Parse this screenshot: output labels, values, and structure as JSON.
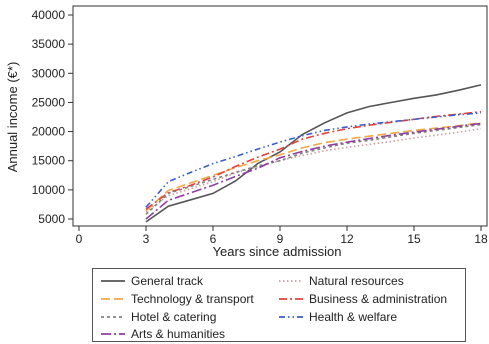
{
  "chart_data": {
    "type": "line",
    "title": "",
    "xlabel": "Years since admission",
    "ylabel": "Annual income (€*)",
    "xlim": [
      0,
      18
    ],
    "ylim": [
      3000,
      41000
    ],
    "x_ticks": [
      0,
      3,
      6,
      9,
      12,
      15,
      18
    ],
    "y_ticks": [
      5000,
      10000,
      15000,
      20000,
      25000,
      30000,
      35000,
      40000
    ],
    "grid": false,
    "legend_position": "bottom",
    "x": [
      3,
      4,
      5,
      6,
      7,
      8,
      9,
      10,
      11,
      12,
      13,
      14,
      15,
      16,
      17,
      18
    ],
    "series": [
      {
        "name": "General track",
        "color": "#555555",
        "dash": "solid",
        "values": [
          4500,
          7200,
          8300,
          9400,
          11500,
          14500,
          16500,
          19500,
          21500,
          23200,
          24300,
          25000,
          25700,
          26300,
          27100,
          28000
        ]
      },
      {
        "name": "Natural resources",
        "color": "#c8a0a0",
        "dash": "dotted",
        "values": [
          6200,
          9000,
          10200,
          11400,
          12900,
          14000,
          15000,
          15900,
          16700,
          17300,
          17800,
          18300,
          18900,
          19400,
          19900,
          20500
        ]
      },
      {
        "name": "Technology & transport",
        "color": "#f0a848",
        "dash": "longdash",
        "values": [
          6400,
          9900,
          11200,
          12500,
          13800,
          15000,
          16000,
          17200,
          18100,
          18700,
          19200,
          19700,
          20200,
          20600,
          21000,
          21500
        ]
      },
      {
        "name": "Business & administration",
        "color": "#e8403c",
        "dash": "dashdot",
        "values": [
          6700,
          9500,
          10800,
          12200,
          14000,
          15600,
          17000,
          18700,
          19700,
          20500,
          21100,
          21600,
          22100,
          22600,
          23000,
          23400
        ]
      },
      {
        "name": "Hotel & catering",
        "color": "#808080",
        "dash": "shortdash",
        "values": [
          5800,
          9400,
          10600,
          11800,
          13000,
          14100,
          15000,
          16300,
          17200,
          18000,
          18500,
          19100,
          19700,
          20200,
          20700,
          21200
        ]
      },
      {
        "name": "Health & welfare",
        "color": "#3a5fcd",
        "dash": "dashdotdot",
        "values": [
          7000,
          11400,
          13000,
          14500,
          15700,
          17000,
          18200,
          19300,
          20200,
          20800,
          21300,
          21700,
          22100,
          22500,
          22900,
          23200
        ]
      },
      {
        "name": "Arts & humanities",
        "color": "#8e3fa0",
        "dash": "longdashdot",
        "values": [
          5000,
          8200,
          9500,
          10800,
          12300,
          13700,
          15500,
          16600,
          17500,
          18200,
          18800,
          19400,
          19900,
          20400,
          20900,
          21400
        ]
      }
    ]
  }
}
